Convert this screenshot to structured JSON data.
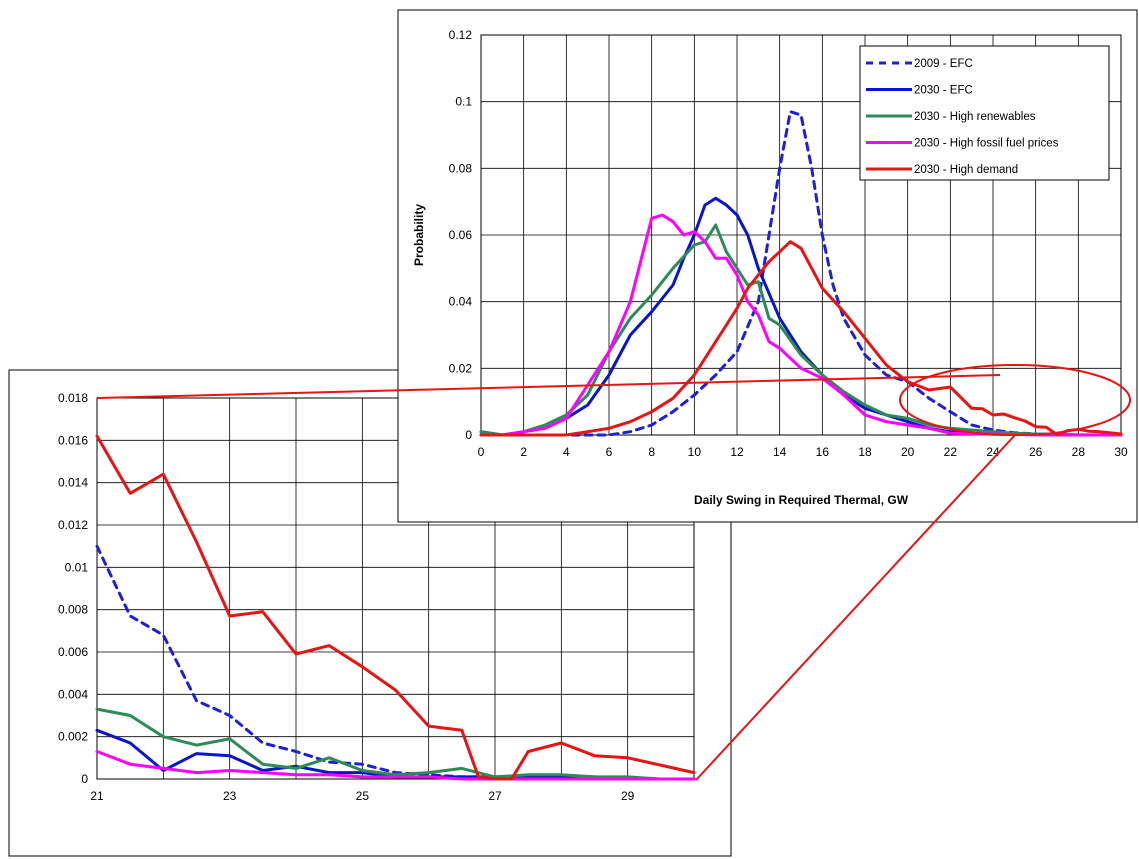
{
  "chart_data": [
    {
      "type": "line",
      "role": "main",
      "title": "",
      "xlabel": "Daily Swing in Required Thermal, GW",
      "ylabel": "Probability",
      "xlim": [
        0,
        30
      ],
      "ylim": [
        0,
        0.12
      ],
      "xticks": [
        "0",
        "2",
        "4",
        "6",
        "8",
        "10",
        "12",
        "14",
        "16",
        "18",
        "20",
        "22",
        "24",
        "26",
        "28",
        "30"
      ],
      "yticks": [
        "0",
        "0.02",
        "0.04",
        "0.06",
        "0.08",
        "0.1",
        "0.12"
      ],
      "grid": true,
      "legend_position": "top-right",
      "series": [
        {
          "name": "2009 - EFC",
          "color": "#1f1fd6",
          "dash": true,
          "x": [
            0,
            1,
            2,
            3,
            4,
            5,
            6,
            7,
            8,
            9,
            10,
            11,
            12,
            13,
            13.5,
            14,
            14.5,
            15,
            15.5,
            16,
            16.5,
            17,
            18,
            19,
            20,
            21,
            22,
            23,
            24,
            25,
            26,
            27,
            28,
            29,
            30
          ],
          "y": [
            0,
            0,
            0,
            0,
            0,
            0,
            0,
            0.001,
            0.003,
            0.007,
            0.012,
            0.018,
            0.025,
            0.04,
            0.06,
            0.08,
            0.097,
            0.096,
            0.08,
            0.06,
            0.045,
            0.035,
            0.024,
            0.018,
            0.016,
            0.011,
            0.007,
            0.003,
            0.0015,
            0.0007,
            0.0003,
            0.0001,
            0,
            0,
            0
          ]
        },
        {
          "name": "2030 - EFC",
          "color": "#0a14c8",
          "x": [
            0,
            1,
            2,
            3,
            4,
            5,
            6,
            7,
            8,
            9,
            9.5,
            10,
            10.5,
            11,
            11.5,
            12,
            12.5,
            13,
            14,
            15,
            16,
            17,
            18,
            19,
            20,
            21,
            22,
            23,
            24,
            25,
            26,
            27,
            28,
            29,
            30
          ],
          "y": [
            0.001,
            0,
            0.001,
            0.002,
            0.005,
            0.009,
            0.018,
            0.03,
            0.037,
            0.045,
            0.053,
            0.06,
            0.069,
            0.071,
            0.069,
            0.066,
            0.06,
            0.05,
            0.035,
            0.025,
            0.018,
            0.012,
            0.008,
            0.006,
            0.004,
            0.002,
            0.001,
            0.0005,
            0.0002,
            0.0002,
            0.0001,
            0,
            0,
            0,
            0
          ]
        },
        {
          "name": "2030 - High renewables",
          "color": "#2e8b57",
          "x": [
            0,
            1,
            2,
            3,
            4,
            5,
            6,
            7,
            8,
            9,
            10,
            10.5,
            11,
            11.5,
            12,
            12.5,
            13,
            13.5,
            14,
            15,
            16,
            17,
            18,
            19,
            20,
            21,
            22,
            23,
            24,
            25,
            26,
            27,
            28,
            29,
            30
          ],
          "y": [
            0.001,
            0,
            0.001,
            0.003,
            0.006,
            0.012,
            0.025,
            0.035,
            0.042,
            0.05,
            0.057,
            0.058,
            0.063,
            0.055,
            0.05,
            0.045,
            0.046,
            0.035,
            0.033,
            0.024,
            0.018,
            0.013,
            0.009,
            0.006,
            0.005,
            0.003,
            0.002,
            0.0015,
            0.001,
            0.0005,
            0.0003,
            0.0002,
            0.0001,
            0,
            0
          ]
        },
        {
          "name": "2030 - High fossil fuel prices",
          "color": "#ff00ff",
          "x": [
            0,
            1,
            2,
            3,
            4,
            5,
            6,
            7,
            8,
            8.5,
            9,
            9.5,
            10,
            10.5,
            11,
            11.5,
            12,
            12.5,
            13,
            13.5,
            14,
            15,
            16,
            17,
            18,
            19,
            20,
            21,
            22,
            23,
            24,
            25,
            26,
            27,
            28,
            29,
            30
          ],
          "y": [
            0,
            0,
            0.001,
            0.002,
            0.005,
            0.015,
            0.025,
            0.04,
            0.065,
            0.066,
            0.064,
            0.06,
            0.061,
            0.058,
            0.053,
            0.053,
            0.048,
            0.04,
            0.036,
            0.028,
            0.026,
            0.02,
            0.017,
            0.012,
            0.006,
            0.004,
            0.003,
            0.002,
            0.0005,
            0.0004,
            0.0003,
            0.0002,
            0.0001,
            0,
            0,
            0,
            0
          ]
        },
        {
          "name": "2030 - High demand",
          "color": "#e81414",
          "x": [
            0,
            1,
            2,
            3,
            4,
            5,
            6,
            7,
            8,
            9,
            10,
            11,
            12,
            12.5,
            13,
            13.5,
            14,
            14.5,
            15,
            15.5,
            16,
            17,
            18,
            19,
            20,
            21,
            22,
            23,
            23.5,
            24,
            24.5,
            25,
            25.5,
            26,
            26.5,
            27,
            27.5,
            28,
            28.5,
            29,
            30
          ],
          "y": [
            0,
            0,
            0,
            0,
            0,
            0.001,
            0.002,
            0.004,
            0.007,
            0.011,
            0.018,
            0.028,
            0.038,
            0.044,
            0.048,
            0.052,
            0.055,
            0.058,
            0.056,
            0.05,
            0.044,
            0.037,
            0.029,
            0.021,
            0.016,
            0.0135,
            0.0144,
            0.008,
            0.0079,
            0.006,
            0.0063,
            0.0052,
            0.0042,
            0.0025,
            0.0023,
            0.0001,
            0.0013,
            0.0017,
            0.0011,
            0.001,
            0.0003
          ]
        }
      ]
    },
    {
      "type": "line",
      "role": "inset",
      "title": "",
      "xlabel": "",
      "ylabel": "",
      "xlim": [
        21,
        30
      ],
      "ylim": [
        0,
        0.018
      ],
      "xticks": [
        "21",
        "23",
        "25",
        "27",
        "29"
      ],
      "yticks": [
        "0",
        "0.002",
        "0.004",
        "0.006",
        "0.008",
        "0.01",
        "0.012",
        "0.014",
        "0.016",
        "0.018"
      ],
      "grid": true,
      "series": [
        {
          "name": "2009 - EFC",
          "color": "#1f1fd6",
          "dash": true,
          "x": [
            21,
            21.5,
            22,
            22.5,
            23,
            23.5,
            24,
            24.5,
            25,
            25.5,
            26,
            26.5,
            27,
            27.5,
            28,
            28.5,
            29,
            29.5,
            30
          ],
          "y": [
            0.011,
            0.0077,
            0.0068,
            0.0037,
            0.003,
            0.0017,
            0.0013,
            0.0008,
            0.0007,
            0.0003,
            0.0002,
            0.0001,
            0.0001,
            0,
            0,
            0,
            0,
            0,
            0
          ]
        },
        {
          "name": "2030 - EFC",
          "color": "#0a14c8",
          "x": [
            21,
            21.5,
            22,
            22.5,
            23,
            23.5,
            24,
            24.5,
            25,
            25.5,
            26,
            26.5,
            27,
            27.5,
            28,
            28.5,
            29,
            29.5,
            30
          ],
          "y": [
            0.0023,
            0.0017,
            0.0004,
            0.0012,
            0.0011,
            0.0004,
            0.0006,
            0.0003,
            0.0003,
            0.0001,
            0.0001,
            0.0001,
            0.0001,
            0.0001,
            0.0001,
            0.0001,
            0,
            0,
            0
          ]
        },
        {
          "name": "2030 - High renewables",
          "color": "#2e8b57",
          "x": [
            21,
            21.5,
            22,
            22.5,
            23,
            23.5,
            24,
            24.5,
            25,
            25.5,
            26,
            26.5,
            27,
            27.5,
            28,
            28.5,
            29,
            29.5,
            30
          ],
          "y": [
            0.0033,
            0.003,
            0.002,
            0.0016,
            0.0019,
            0.0007,
            0.0005,
            0.001,
            0.0004,
            0.0002,
            0.0003,
            0.0005,
            0.0001,
            0.0002,
            0.0002,
            0.0001,
            0.0001,
            0,
            0
          ]
        },
        {
          "name": "2030 - High fossil fuel prices",
          "color": "#ff00ff",
          "x": [
            21,
            21.5,
            22,
            22.5,
            23,
            23.5,
            24,
            24.5,
            25,
            25.5,
            26,
            26.5,
            27,
            27.5,
            28,
            28.5,
            29,
            29.5,
            30
          ],
          "y": [
            0.0013,
            0.0007,
            0.0005,
            0.0003,
            0.0004,
            0.0003,
            0.0002,
            0.0002,
            0.0001,
            0.0001,
            0.0001,
            0,
            0,
            0,
            0,
            0,
            0,
            0,
            0
          ]
        },
        {
          "name": "2030 - High demand",
          "color": "#e81414",
          "x": [
            21,
            21.5,
            22,
            22.5,
            23,
            23.5,
            24,
            24.5,
            25,
            25.5,
            26,
            26.5,
            26.75,
            27,
            27.25,
            27.5,
            28,
            28.5,
            29,
            30
          ],
          "y": [
            0.0162,
            0.0135,
            0.0144,
            0.0112,
            0.0077,
            0.0079,
            0.0059,
            0.0063,
            0.0053,
            0.0042,
            0.0025,
            0.0023,
            0.0001,
            0,
            0,
            0.0013,
            0.0017,
            0.0011,
            0.001,
            0.0003
          ]
        }
      ]
    }
  ]
}
